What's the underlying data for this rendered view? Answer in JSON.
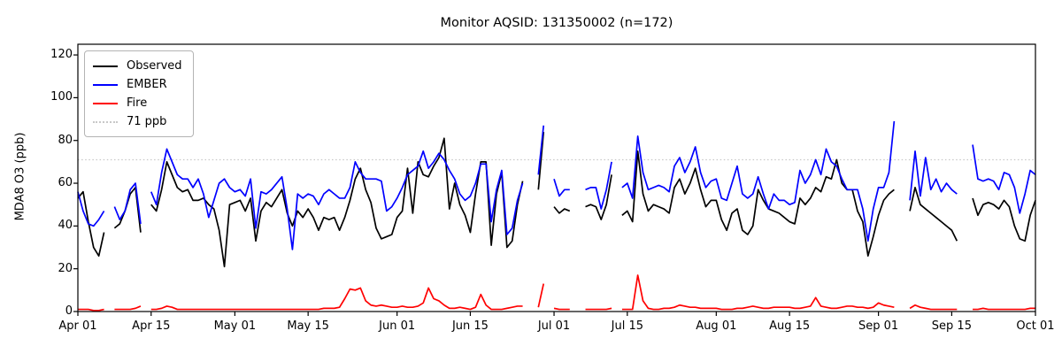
{
  "title": "Monitor AQSID: 131350002 (n=172)",
  "ylabel": "MDA8 O3 (ppb)",
  "colors": {
    "observed": "#000000",
    "ember": "#0000ff",
    "fire": "#ff0000",
    "threshold": "#c8c8c8",
    "frame": "#000000",
    "background": "#ffffff"
  },
  "legend": {
    "items": [
      {
        "label": "Observed",
        "color": "#000000",
        "style": "solid"
      },
      {
        "label": "EMBER",
        "color": "#0000ff",
        "style": "solid"
      },
      {
        "label": "Fire",
        "color": "#ff0000",
        "style": "solid"
      },
      {
        "label": "71 ppb",
        "color": "#c8c8c8",
        "style": "dotted"
      }
    ]
  },
  "chart_data": {
    "type": "line",
    "title": "Monitor AQSID: 131350002 (n=172)",
    "xlabel": "",
    "ylabel": "MDA8 O3 (ppb)",
    "n_points": 172,
    "x_unit": "days since Apr 01 (daily values, Apr 01 – Oct 01; null = missing day)",
    "xlim_days": [
      0,
      183
    ],
    "ylim": [
      0,
      125
    ],
    "grid": false,
    "legend_position": "upper left",
    "threshold": {
      "value": 71,
      "label": "71 ppb",
      "color": "#c8c8c8",
      "style": "dotted"
    },
    "yticks": [
      0,
      20,
      40,
      60,
      80,
      100,
      120
    ],
    "xticks": [
      {
        "label": "Apr 01",
        "day": 0
      },
      {
        "label": "Apr 15",
        "day": 14
      },
      {
        "label": "May 01",
        "day": 30
      },
      {
        "label": "May 15",
        "day": 44
      },
      {
        "label": "Jun 01",
        "day": 61
      },
      {
        "label": "Jun 15",
        "day": 75
      },
      {
        "label": "Jul 01",
        "day": 91
      },
      {
        "label": "Jul 15",
        "day": 105
      },
      {
        "label": "Aug 01",
        "day": 122
      },
      {
        "label": "Aug 15",
        "day": 136
      },
      {
        "label": "Sep 01",
        "day": 153
      },
      {
        "label": "Sep 15",
        "day": 167
      },
      {
        "label": "Oct 01",
        "day": 183
      }
    ],
    "series": [
      {
        "name": "Observed",
        "color": "#000000",
        "values": [
          53,
          56,
          42,
          30,
          26,
          37,
          null,
          39,
          41,
          47,
          55,
          58,
          37,
          null,
          50,
          47,
          57,
          70,
          64,
          58,
          56,
          57,
          52,
          52,
          53,
          50,
          48,
          38,
          21,
          50,
          51,
          52,
          47,
          53,
          33,
          47,
          51,
          49,
          53,
          57,
          46,
          40,
          47,
          44,
          48,
          44,
          38,
          44,
          43,
          44,
          38,
          44,
          52,
          62,
          67,
          57,
          51,
          39,
          34,
          35,
          36,
          44,
          47,
          67,
          46,
          70,
          64,
          63,
          68,
          72,
          81,
          48,
          60,
          50,
          45,
          37,
          55,
          70,
          70,
          31,
          55,
          65,
          30,
          33,
          50,
          61,
          null,
          null,
          57,
          84,
          null,
          49,
          46,
          48,
          47,
          null,
          null,
          49,
          50,
          49,
          43,
          50,
          64,
          null,
          45,
          47,
          42,
          75,
          55,
          47,
          50,
          49,
          48,
          46,
          58,
          62,
          55,
          60,
          67,
          57,
          49,
          52,
          52,
          43,
          38,
          46,
          48,
          38,
          36,
          40,
          57,
          52,
          48,
          47,
          46,
          44,
          42,
          41,
          53,
          50,
          53,
          58,
          56,
          63,
          62,
          71,
          60,
          57,
          57,
          47,
          42,
          26,
          35,
          45,
          52,
          55,
          57,
          null,
          null,
          47,
          58,
          50,
          48,
          46,
          44,
          42,
          40,
          38,
          33,
          null,
          null,
          53,
          45,
          50,
          51,
          50,
          48,
          52,
          49,
          40,
          34,
          33,
          45,
          52
        ]
      },
      {
        "name": "EMBER",
        "color": "#0000ff",
        "values": [
          56,
          47,
          41,
          40,
          43,
          47,
          null,
          49,
          43,
          47,
          57,
          60,
          41,
          null,
          56,
          50,
          65,
          76,
          70,
          64,
          62,
          62,
          58,
          62,
          55,
          44,
          52,
          60,
          62,
          58,
          56,
          57,
          54,
          62,
          39,
          56,
          55,
          57,
          60,
          63,
          48,
          29,
          55,
          53,
          55,
          54,
          50,
          55,
          57,
          55,
          53,
          53,
          58,
          70,
          65,
          62,
          62,
          62,
          61,
          47,
          49,
          53,
          58,
          64,
          66,
          68,
          75,
          67,
          70,
          74,
          71,
          66,
          62,
          55,
          52,
          54,
          60,
          69,
          69,
          42,
          57,
          66,
          36,
          39,
          52,
          60,
          null,
          null,
          64,
          87,
          null,
          62,
          54,
          57,
          57,
          null,
          null,
          57,
          58,
          58,
          48,
          57,
          70,
          null,
          58,
          60,
          53,
          82,
          65,
          57,
          58,
          59,
          58,
          56,
          68,
          72,
          65,
          70,
          77,
          65,
          58,
          61,
          62,
          53,
          52,
          60,
          68,
          55,
          53,
          55,
          63,
          55,
          48,
          55,
          52,
          52,
          50,
          51,
          66,
          60,
          64,
          71,
          64,
          76,
          70,
          68,
          62,
          57,
          57,
          57,
          48,
          33,
          48,
          58,
          58,
          65,
          89,
          null,
          null,
          52,
          75,
          54,
          72,
          57,
          62,
          56,
          60,
          57,
          55,
          null,
          null,
          78,
          62,
          61,
          62,
          61,
          57,
          65,
          64,
          58,
          46,
          55,
          66,
          64
        ]
      },
      {
        "name": "Fire",
        "color": "#ff0000",
        "values": [
          1,
          1,
          1,
          0.5,
          0.5,
          1,
          null,
          1,
          1,
          1,
          1,
          1.5,
          2.5,
          null,
          1,
          1,
          1.5,
          2.5,
          2,
          1,
          1,
          1,
          1,
          1,
          1,
          1,
          1,
          1,
          1,
          1,
          1,
          1,
          1,
          1,
          1,
          1,
          1,
          1,
          1,
          1,
          1,
          1,
          1,
          1,
          1,
          1,
          1,
          1.5,
          1.5,
          1.5,
          2,
          6,
          10.5,
          10,
          11,
          5,
          3,
          2.5,
          3,
          2.5,
          2,
          2,
          2.5,
          2,
          2,
          2.5,
          4,
          11,
          6,
          5,
          3,
          1.5,
          1.5,
          2,
          1.5,
          1,
          2,
          8,
          3,
          1,
          1,
          1,
          1.5,
          2,
          2.5,
          2.5,
          null,
          null,
          2,
          13,
          null,
          1.5,
          1,
          1,
          1,
          null,
          null,
          1,
          1,
          1,
          1,
          1,
          1.5,
          null,
          1,
          1,
          1,
          17,
          5,
          1.5,
          1,
          1,
          1.5,
          1.5,
          2,
          3,
          2.5,
          2,
          2,
          1.5,
          1.5,
          1.5,
          1.5,
          1,
          1,
          1,
          1.5,
          1.5,
          2,
          2.5,
          2,
          1.5,
          1.5,
          2,
          2,
          2,
          2,
          1.5,
          1.5,
          2,
          2.5,
          6.5,
          2.5,
          2,
          1.5,
          1.5,
          2,
          2.5,
          2.5,
          2,
          2,
          1.5,
          2,
          4,
          3,
          2.5,
          2,
          null,
          null,
          1.5,
          3,
          2,
          1.5,
          1,
          1,
          1,
          1,
          1,
          1,
          null,
          null,
          1,
          1,
          1.5,
          1,
          1,
          1,
          1,
          1,
          1,
          1,
          1,
          1.5,
          1.5
        ]
      }
    ]
  }
}
